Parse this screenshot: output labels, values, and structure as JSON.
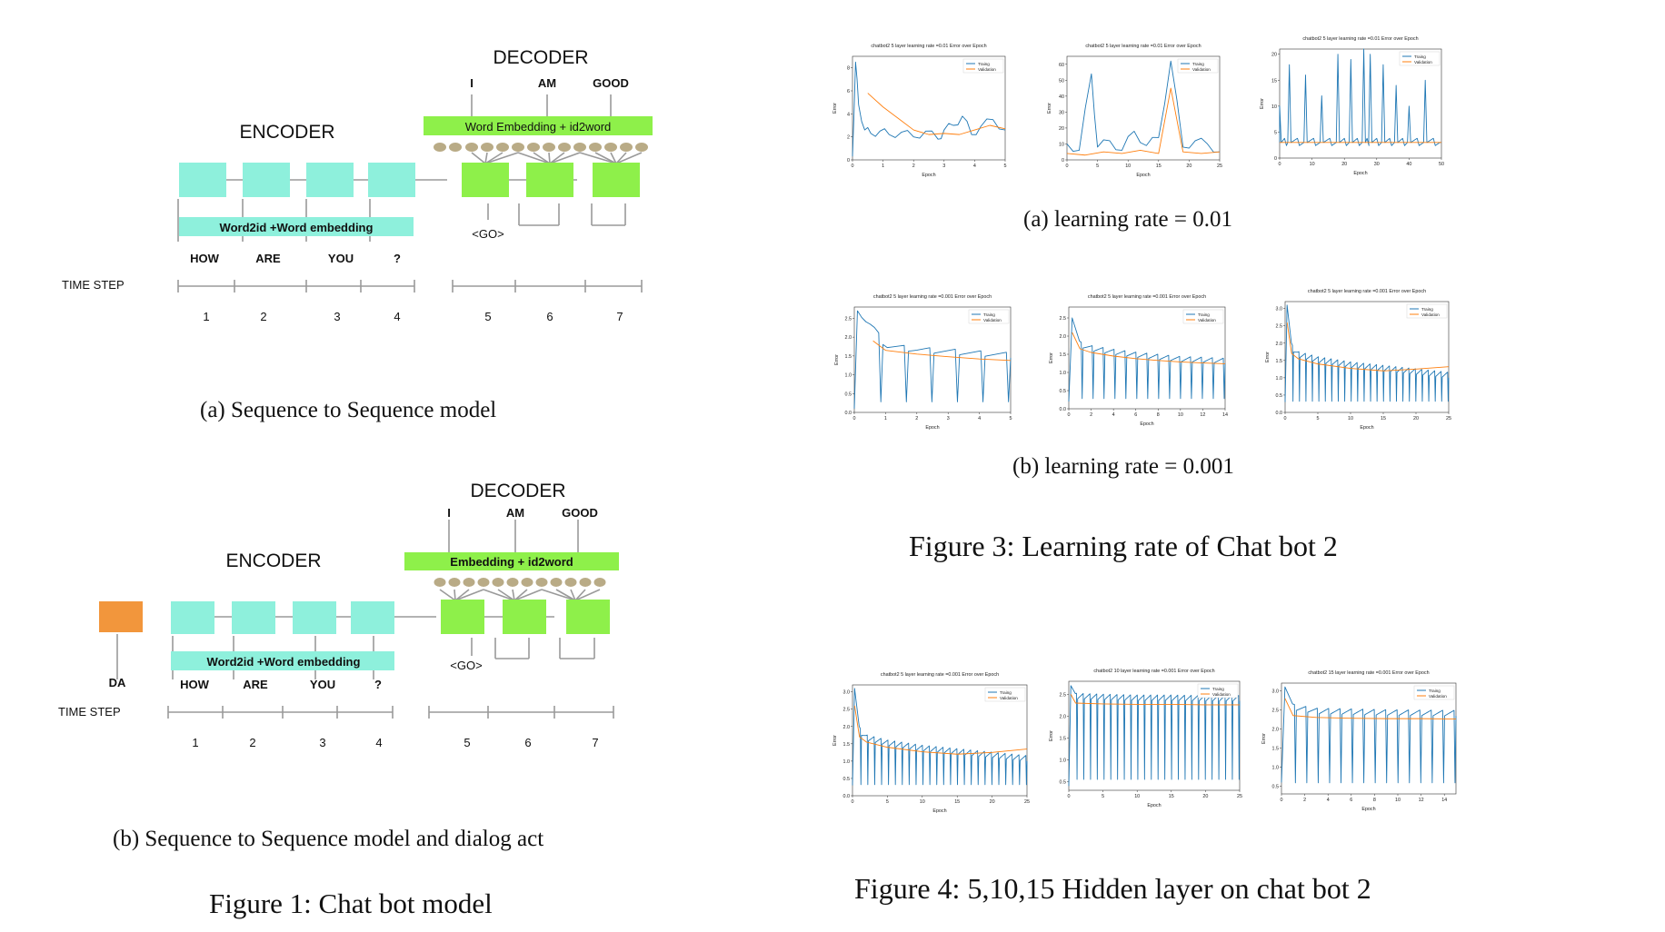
{
  "colors": {
    "encoder_box": "#8ef0dc",
    "decoder_box": "#8ef04a",
    "dialog_act_box": "#f2963c",
    "embedding_node": "#b9ab86",
    "line": "#9a9a9a",
    "training": "#1f77b4",
    "validation": "#ff7f0e"
  },
  "fig1": {
    "a": {
      "encoder": "ENCODER",
      "decoder": "DECODER",
      "decoder_embed": "Word Embedding + id2word",
      "encoder_embed": "Word2id +Word embedding",
      "outputs": [
        "I",
        "AM",
        "GOOD"
      ],
      "inputs": [
        "HOW",
        "ARE",
        "YOU",
        "?"
      ],
      "go": "<GO>",
      "time_step": "TIME STEP",
      "steps": [
        "1",
        "2",
        "3",
        "4",
        "5",
        "6",
        "7"
      ],
      "caption": "(a)  Sequence to Sequence model"
    },
    "b": {
      "encoder": "ENCODER",
      "decoder": "DECODER",
      "decoder_embed": "Embedding + id2word",
      "encoder_embed": "Word2id +Word embedding",
      "outputs": [
        "I",
        "AM",
        "GOOD"
      ],
      "inputs": [
        "HOW",
        "ARE",
        "YOU",
        "?"
      ],
      "dialog_act": "DA",
      "go": "<GO>",
      "time_step": "TIME STEP",
      "steps": [
        "1",
        "2",
        "3",
        "4",
        "5",
        "6",
        "7"
      ],
      "caption": "(b)  Sequence to Sequence model and dialog act"
    },
    "caption": "Figure 1: Chat bot model"
  },
  "fig3": {
    "sub_a_caption": "(a)  learning rate = 0.01",
    "sub_b_caption": "(b)  learning rate = 0.001",
    "caption": "Figure 3: Learning rate of Chat bot 2"
  },
  "fig4": {
    "caption": "Figure 4: 5,10,15 Hidden layer on chat bot 2"
  },
  "chart_data": [
    {
      "type": "line",
      "title": "chatbot2 5 layer learning rate =0.01 Error over Epoch",
      "xlabel": "Epoch",
      "ylabel": "Error",
      "xlim": [
        0,
        5
      ],
      "ylim": [
        0,
        9
      ],
      "xticks": [
        "0",
        "1",
        "2",
        "3",
        "4",
        "5"
      ],
      "yticks": [
        "0",
        "2",
        "4",
        "6",
        "8"
      ],
      "legend": "top-right",
      "series": [
        {
          "name": "Traing",
          "pattern": "noisy",
          "x": [
            0,
            0.1,
            0.2,
            0.4,
            0.6,
            0.9,
            1.2,
            1.6,
            2.0,
            2.4,
            2.8,
            3.0,
            3.3,
            3.6,
            3.9,
            4.2,
            4.6,
            5.0
          ],
          "y": [
            0.3,
            8.5,
            4.8,
            2.6,
            2.3,
            2.5,
            2.2,
            2.4,
            2.0,
            2.5,
            1.8,
            2.6,
            3.0,
            3.8,
            2.2,
            2.9,
            3.5,
            2.6
          ]
        },
        {
          "name": "Validation",
          "x": [
            0.5,
            1.0,
            1.5,
            2.0,
            2.5,
            3.0,
            3.5,
            4.0,
            4.5,
            5.0
          ],
          "y": [
            5.8,
            4.6,
            3.6,
            2.6,
            2.2,
            2.3,
            2.2,
            2.6,
            3.0,
            2.7
          ]
        }
      ]
    },
    {
      "type": "line",
      "title": "chatbot2 5 layer learning rate =0.01 Error over Epoch",
      "xlabel": "Epoch",
      "ylabel": "Error",
      "xlim": [
        0,
        25
      ],
      "ylim": [
        0,
        65
      ],
      "xticks": [
        "0",
        "5",
        "10",
        "15",
        "20",
        "25"
      ],
      "yticks": [
        "0",
        "10",
        "20",
        "30",
        "40",
        "50",
        "60"
      ],
      "legend": "top-right",
      "series": [
        {
          "name": "Traing",
          "pattern": "noisy",
          "x": [
            0,
            2,
            4,
            5,
            7,
            9,
            11,
            13,
            15,
            17,
            19,
            21,
            23,
            25
          ],
          "y": [
            10,
            6,
            54,
            8,
            12,
            6,
            18,
            9,
            14,
            62,
            8,
            12,
            10,
            5
          ]
        },
        {
          "name": "Validation",
          "x": [
            0,
            3,
            6,
            9,
            12,
            15,
            17,
            19,
            22,
            25
          ],
          "y": [
            4,
            3,
            5,
            4,
            6,
            4,
            45,
            5,
            4,
            5
          ]
        }
      ]
    },
    {
      "type": "line",
      "title": "chatbot2 5 layer learning rate =0.01 Error over Epoch",
      "xlabel": "Epoch",
      "ylabel": "Error",
      "xlim": [
        0,
        50
      ],
      "ylim": [
        0,
        21
      ],
      "xticks": [
        "0",
        "10",
        "20",
        "30",
        "40",
        "50"
      ],
      "yticks": [
        "0",
        "5",
        "10",
        "15",
        "20"
      ],
      "legend": "top-right",
      "series": [
        {
          "name": "Traing",
          "pattern": "spikes",
          "x": [
            0,
            3,
            8,
            13,
            18,
            22,
            26,
            28,
            32,
            36,
            40,
            45,
            50
          ],
          "y": [
            10,
            18,
            16,
            12,
            20,
            19,
            21,
            20,
            18,
            14,
            10,
            15,
            3
          ]
        },
        {
          "name": "Validation",
          "x": [
            0,
            10,
            20,
            30,
            40,
            50
          ],
          "y": [
            3,
            3,
            3,
            3,
            3,
            3
          ]
        }
      ]
    },
    {
      "type": "line",
      "title": "chatbot2 5 layer learning rate =0.001 Error over Epoch",
      "xlabel": "Epoch",
      "ylabel": "Error",
      "xlim": [
        0,
        5
      ],
      "ylim": [
        0,
        2.8
      ],
      "xticks": [
        "0",
        "1",
        "2",
        "3",
        "4",
        "5"
      ],
      "yticks": [
        "0.0",
        "0.5",
        "1.0",
        "1.5",
        "2.0",
        "2.5"
      ],
      "legend": "top-right",
      "series": [
        {
          "name": "Traing",
          "pattern": "sawtooth",
          "x": [
            0,
            0.1,
            0.3,
            0.6,
            1.0,
            1.5,
            2.0,
            3.0,
            4.0,
            5.0
          ],
          "y": [
            0.1,
            2.7,
            2.4,
            2.2,
            1.7,
            1.65,
            1.6,
            1.55,
            1.5,
            1.45
          ]
        },
        {
          "name": "Validation",
          "x": [
            0.6,
            1.0,
            2.0,
            3.0,
            4.0,
            5.0
          ],
          "y": [
            1.9,
            1.65,
            1.55,
            1.48,
            1.42,
            1.38
          ]
        }
      ]
    },
    {
      "type": "line",
      "title": "chatbot2 5 layer learning rate =0.001 Error over Epoch",
      "xlabel": "Epoch",
      "ylabel": "Error",
      "xlim": [
        0,
        14
      ],
      "ylim": [
        0,
        2.8
      ],
      "xticks": [
        "0",
        "2",
        "4",
        "6",
        "8",
        "10",
        "12",
        "14"
      ],
      "yticks": [
        "0.0",
        "0.5",
        "1.0",
        "1.5",
        "2.0",
        "2.5"
      ],
      "legend": "top-right",
      "series": [
        {
          "name": "Traing",
          "pattern": "sawtooth",
          "x": [
            0,
            0.3,
            1,
            2,
            4,
            6,
            8,
            10,
            12,
            14
          ],
          "y": [
            0.2,
            2.5,
            1.7,
            1.6,
            1.5,
            1.42,
            1.36,
            1.3,
            1.28,
            1.25
          ]
        },
        {
          "name": "Validation",
          "x": [
            0.3,
            1,
            2,
            4,
            6,
            8,
            10,
            12,
            14
          ],
          "y": [
            2.1,
            1.65,
            1.55,
            1.45,
            1.38,
            1.33,
            1.29,
            1.26,
            1.24
          ]
        }
      ]
    },
    {
      "type": "line",
      "title": "chatbot2 5 layer learning rate =0.001 Error over Epoch",
      "xlabel": "Epoch",
      "ylabel": "Error",
      "xlim": [
        0,
        25
      ],
      "ylim": [
        0,
        3.2
      ],
      "xticks": [
        "0",
        "5",
        "10",
        "15",
        "20",
        "25"
      ],
      "yticks": [
        "0.0",
        "0.5",
        "1.0",
        "1.5",
        "2.0",
        "2.5",
        "3.0"
      ],
      "legend": "top-right",
      "series": [
        {
          "name": "Traing",
          "pattern": "sawtooth",
          "x": [
            0,
            0.3,
            1,
            2,
            5,
            10,
            15,
            20,
            25
          ],
          "y": [
            0.3,
            3.1,
            1.8,
            1.6,
            1.45,
            1.3,
            1.2,
            1.1,
            1.0
          ]
        },
        {
          "name": "Validation",
          "x": [
            0.3,
            1,
            2,
            5,
            10,
            15,
            20,
            25
          ],
          "y": [
            2.6,
            1.7,
            1.55,
            1.4,
            1.27,
            1.2,
            1.25,
            1.32
          ]
        }
      ]
    },
    {
      "type": "line",
      "title": "chatbot2 5 layer learning rate =0.001 Error over Epoch",
      "xlabel": "Epoch",
      "ylabel": "Error",
      "xlim": [
        0,
        25
      ],
      "ylim": [
        0,
        3.2
      ],
      "xticks": [
        "0",
        "5",
        "10",
        "15",
        "20",
        "25"
      ],
      "yticks": [
        "0.0",
        "0.5",
        "1.0",
        "1.5",
        "2.0",
        "2.5",
        "3.0"
      ],
      "legend": "top-right",
      "series": [
        {
          "name": "Traing",
          "pattern": "sawtooth",
          "x": [
            0,
            0.3,
            1,
            2,
            5,
            10,
            15,
            20,
            25
          ],
          "y": [
            0.3,
            3.1,
            1.8,
            1.6,
            1.45,
            1.3,
            1.2,
            1.1,
            1.0
          ]
        },
        {
          "name": "Validation",
          "x": [
            0.3,
            1,
            2,
            5,
            10,
            15,
            20,
            25
          ],
          "y": [
            2.6,
            1.7,
            1.55,
            1.4,
            1.27,
            1.2,
            1.25,
            1.35
          ]
        }
      ]
    },
    {
      "type": "line",
      "title": "chatbot2 10 layer learning rate =0.001 Error over Epoch",
      "xlabel": "Epoch",
      "ylabel": "Error",
      "xlim": [
        0,
        25
      ],
      "ylim": [
        0.3,
        2.8
      ],
      "xticks": [
        "0",
        "5",
        "10",
        "15",
        "20",
        "25"
      ],
      "yticks": [
        "0.5",
        "1.0",
        "1.5",
        "2.0",
        "2.5"
      ],
      "legend": "top-right",
      "series": [
        {
          "name": "Traing",
          "pattern": "sawtooth",
          "x": [
            0,
            0.3,
            1,
            5,
            10,
            15,
            20,
            25
          ],
          "y": [
            0.4,
            2.7,
            2.4,
            2.38,
            2.36,
            2.36,
            2.35,
            2.35
          ]
        },
        {
          "name": "Validation",
          "x": [
            0.3,
            1,
            5,
            10,
            15,
            20,
            25
          ],
          "y": [
            2.5,
            2.3,
            2.28,
            2.27,
            2.27,
            2.26,
            2.26
          ]
        }
      ]
    },
    {
      "type": "line",
      "title": "chatbot2 15 layer learning rate =0.001 Error over Epoch",
      "xlabel": "Epoch",
      "ylabel": "Error",
      "xlim": [
        0,
        15
      ],
      "ylim": [
        0.3,
        3.2
      ],
      "xticks": [
        "0",
        "2",
        "4",
        "6",
        "8",
        "10",
        "12",
        "14"
      ],
      "yticks": [
        "0.5",
        "1.0",
        "1.5",
        "2.0",
        "2.5",
        "3.0"
      ],
      "legend": "top-right",
      "series": [
        {
          "name": "Traing",
          "pattern": "sawtooth",
          "x": [
            0,
            0.3,
            1,
            3,
            6,
            9,
            12,
            15
          ],
          "y": [
            0.6,
            3.1,
            2.5,
            2.4,
            2.38,
            2.36,
            2.35,
            2.34
          ]
        },
        {
          "name": "Validation",
          "x": [
            0.3,
            1,
            3,
            6,
            9,
            12,
            15
          ],
          "y": [
            2.8,
            2.35,
            2.3,
            2.28,
            2.27,
            2.27,
            2.26
          ]
        }
      ]
    }
  ]
}
